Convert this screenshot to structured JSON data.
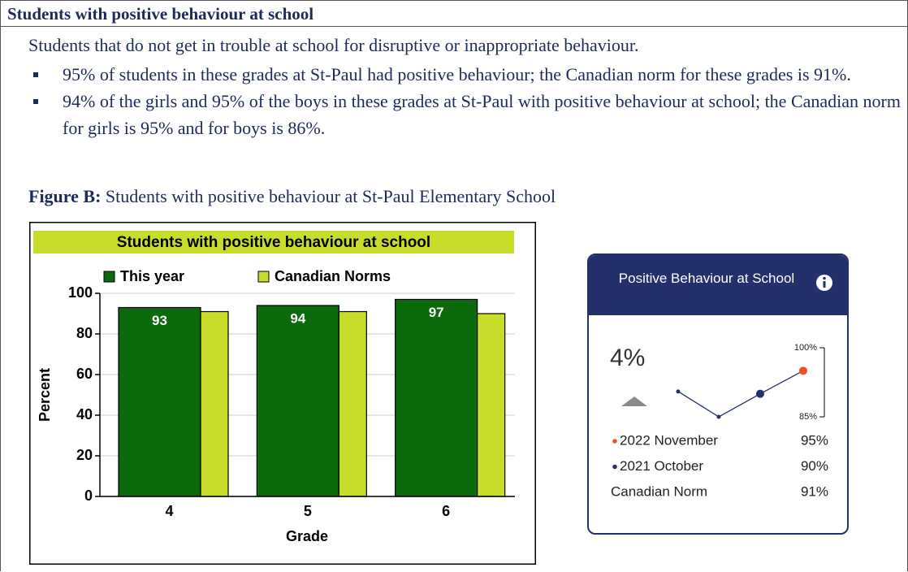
{
  "header": {
    "title": "Students with positive behaviour at school"
  },
  "description": "Students that do not get in trouble at school for disruptive or inappropriate behaviour.",
  "bullets": [
    "95% of students in these grades at St-Paul had positive behaviour; the Canadian norm for these grades is 91%.",
    "94% of the girls and 95% of the boys in these grades at St-Paul with positive behaviour at school; the Canadian norm for girls is 95% and for boys is 86%."
  ],
  "figure_caption": {
    "label": "Figure B:",
    "text": "Students with positive behaviour at St-Paul Elementary School"
  },
  "chart_data": [
    {
      "type": "bar",
      "title": "Students with positive behaviour at school",
      "categories": [
        "4",
        "5",
        "6"
      ],
      "series": [
        {
          "name": "This year",
          "color": "#0b6a0b",
          "values": [
            93,
            94,
            97
          ]
        },
        {
          "name": "Canadian Norms",
          "color": "#c8dc2a",
          "values": [
            91,
            91,
            90
          ]
        }
      ],
      "data_labels_series": 0,
      "xlabel": "Grade",
      "ylabel": "Percent",
      "ylim": [
        0,
        100
      ],
      "yticks": [
        0,
        20,
        40,
        60,
        80,
        100
      ],
      "grid": true
    },
    {
      "type": "line",
      "categories": [
        null,
        null,
        null,
        null
      ],
      "values": [
        90.5,
        85,
        90,
        95
      ],
      "color": "#23306b",
      "point_colors": [
        "#23306b",
        "#23306b",
        "#23306b",
        "#f04e23"
      ],
      "ylim": [
        85,
        100
      ],
      "yticks": [
        {
          "value": 85,
          "label": "85%"
        },
        {
          "value": 100,
          "label": "100%"
        }
      ]
    }
  ],
  "card": {
    "title": "Positive Behaviour at School",
    "change": "4%",
    "rows": [
      {
        "label": "2022 November",
        "value": "95%",
        "color": "#f04e23"
      },
      {
        "label": "2021 October",
        "value": "90%",
        "color": "#23306b"
      },
      {
        "label": "Canadian Norm",
        "value": "91%"
      }
    ]
  }
}
